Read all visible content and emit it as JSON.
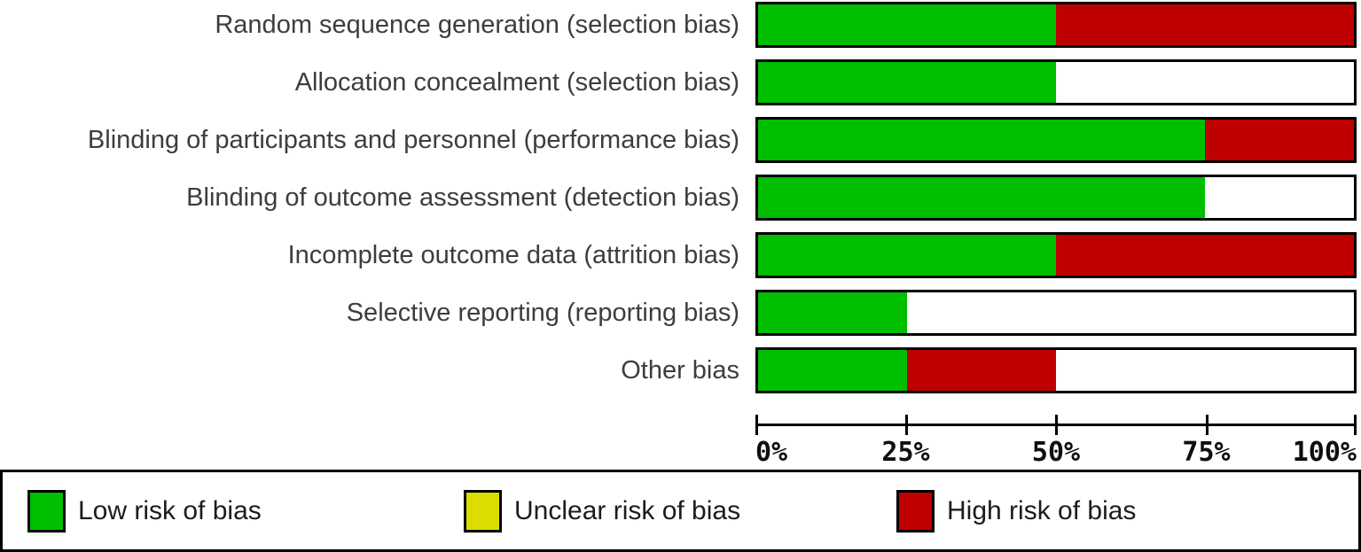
{
  "chart_data": {
    "type": "bar",
    "orientation": "horizontal-stacked",
    "categories": [
      "Random sequence generation (selection bias)",
      "Allocation concealment (selection bias)",
      "Blinding of participants and personnel (performance bias)",
      "Blinding of outcome assessment (detection bias)",
      "Incomplete outcome data (attrition bias)",
      "Selective reporting (reporting bias)",
      "Other bias"
    ],
    "series": [
      {
        "name": "Low risk of bias",
        "color": "#00BE00",
        "values": [
          50,
          50,
          75,
          75,
          50,
          25,
          25
        ]
      },
      {
        "name": "Unclear risk of bias",
        "color": "#DCDC00",
        "values": [
          0,
          0,
          0,
          0,
          0,
          0,
          0
        ]
      },
      {
        "name": "High risk of bias",
        "color": "#BE0000",
        "values": [
          50,
          0,
          25,
          0,
          50,
          0,
          25
        ]
      }
    ],
    "x_ticks": [
      "0%",
      "25%",
      "50%",
      "75%",
      "100%"
    ],
    "xlim": [
      0,
      100
    ],
    "grid": false,
    "bar_background": "#FFFFFF",
    "bar_border_color": "#000000",
    "legend_position": "bottom"
  },
  "legend": {
    "items": [
      {
        "label": "Low risk of bias",
        "color": "#00BE00"
      },
      {
        "label": "Unclear risk of bias",
        "color": "#DCDC00"
      },
      {
        "label": "High risk of bias",
        "color": "#BE0000"
      }
    ]
  }
}
